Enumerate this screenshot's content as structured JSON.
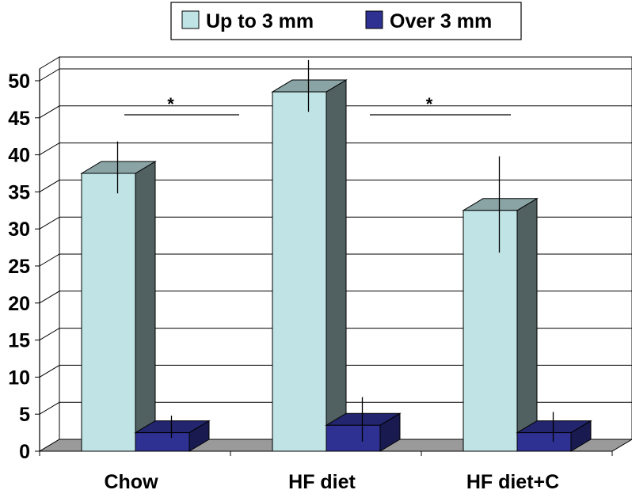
{
  "chart_data": {
    "type": "bar",
    "style": "3d-clustered",
    "categories": [
      "Chow",
      "HF diet",
      "HF diet+C"
    ],
    "series": [
      {
        "name": "Up to 3 mm",
        "color": "#c0e4e6",
        "values": [
          37.5,
          48.5,
          32.5
        ],
        "error": [
          3.5,
          3.5,
          6.5
        ]
      },
      {
        "name": "Over 3 mm",
        "color": "#2e3192",
        "values": [
          2.5,
          3.5,
          2.5
        ],
        "error": [
          1.5,
          3.0,
          2.0
        ]
      }
    ],
    "ylim": [
      0,
      50
    ],
    "yticks": [
      "0",
      "5",
      "10",
      "15",
      "20",
      "25",
      "30",
      "35",
      "40",
      "45",
      "50"
    ],
    "grid": true,
    "legend_position": "top",
    "annotations": [
      {
        "text": "*",
        "from": "Chow",
        "to": "HF diet"
      },
      {
        "text": "*",
        "from": "HF diet",
        "to": "HF diet+C"
      }
    ]
  }
}
